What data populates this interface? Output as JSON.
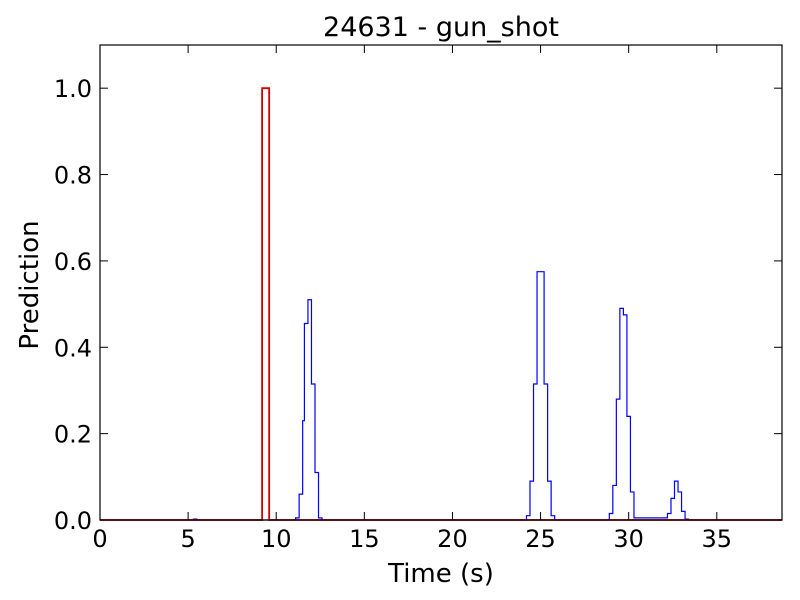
{
  "chart_data": {
    "type": "line",
    "title": "24631 - gun_shot",
    "xlabel": "Time (s)",
    "ylabel": "Prediction",
    "xlim": [
      0,
      38.7
    ],
    "ylim": [
      0,
      1.1
    ],
    "xticks": [
      0,
      5,
      10,
      15,
      20,
      25,
      30,
      35
    ],
    "yticks": [
      0.0,
      0.2,
      0.4,
      0.6,
      0.8,
      1.0
    ],
    "xtick_labels": [
      "0",
      "5",
      "10",
      "15",
      "20",
      "25",
      "30",
      "35"
    ],
    "ytick_labels": [
      "0.0",
      "0.2",
      "0.4",
      "0.6",
      "0.8",
      "1.0"
    ],
    "grid": false,
    "series": [
      {
        "color": "#0000ff",
        "step": true,
        "x": [
          0,
          5.3,
          5.5,
          5.7,
          11.1,
          11.3,
          11.5,
          11.6,
          11.8,
          12.0,
          12.2,
          12.4,
          12.6,
          12.8,
          24.2,
          24.4,
          24.6,
          24.8,
          25.0,
          25.2,
          25.4,
          25.6,
          25.8,
          28.9,
          29.1,
          29.3,
          29.5,
          29.7,
          29.9,
          30.1,
          30.3,
          32.2,
          32.4,
          32.6,
          32.8,
          33.0,
          33.2,
          33.4,
          38.7
        ],
        "y": [
          0.0,
          0.002,
          0.0,
          0.0,
          0.005,
          0.06,
          0.23,
          0.455,
          0.51,
          0.315,
          0.11,
          0.005,
          0.0,
          0.0,
          0.01,
          0.09,
          0.315,
          0.575,
          0.575,
          0.315,
          0.09,
          0.01,
          0.0,
          0.015,
          0.08,
          0.28,
          0.49,
          0.475,
          0.24,
          0.065,
          0.005,
          0.015,
          0.05,
          0.09,
          0.065,
          0.02,
          0.002,
          0.0,
          0.0
        ]
      },
      {
        "color": "#cc0000",
        "step": true,
        "x": [
          0,
          9.2,
          9.4,
          9.6,
          38.7
        ],
        "y": [
          0.0,
          1.0,
          1.0,
          0.0,
          0.0
        ]
      }
    ]
  }
}
